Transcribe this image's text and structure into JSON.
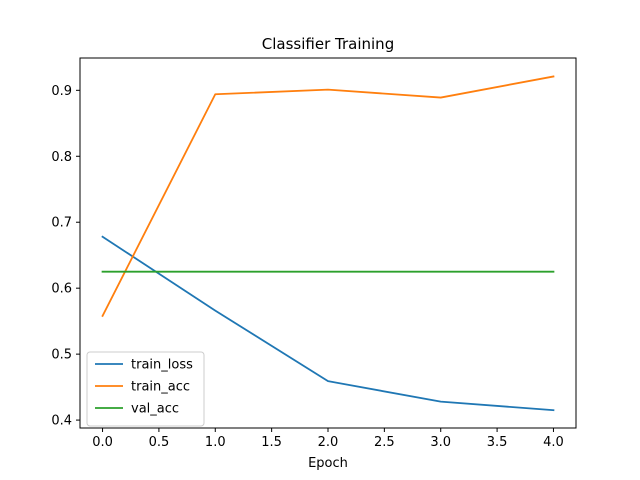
{
  "chart_data": {
    "type": "line",
    "title": "Classifier Training",
    "xlabel": "Epoch",
    "ylabel": "",
    "x": [
      0,
      1,
      2,
      3,
      4
    ],
    "xlim": [
      -0.2,
      4.2
    ],
    "ylim": [
      0.388,
      0.949
    ],
    "xticks": [
      "0.0",
      "0.5",
      "1.0",
      "1.5",
      "2.0",
      "2.5",
      "3.0",
      "3.5",
      "4.0"
    ],
    "yticks": [
      "0.4",
      "0.5",
      "0.6",
      "0.7",
      "0.8",
      "0.9"
    ],
    "grid": false,
    "legend_position": "lower-left",
    "series": [
      {
        "name": "train_loss",
        "color": "#1f77b4",
        "values": [
          0.678,
          0.566,
          0.459,
          0.428,
          0.415
        ]
      },
      {
        "name": "train_acc",
        "color": "#ff7f0e",
        "values": [
          0.558,
          0.894,
          0.901,
          0.889,
          0.921
        ]
      },
      {
        "name": "val_acc",
        "color": "#2ca02c",
        "values": [
          0.625,
          0.625,
          0.625,
          0.625,
          0.625
        ]
      }
    ]
  }
}
